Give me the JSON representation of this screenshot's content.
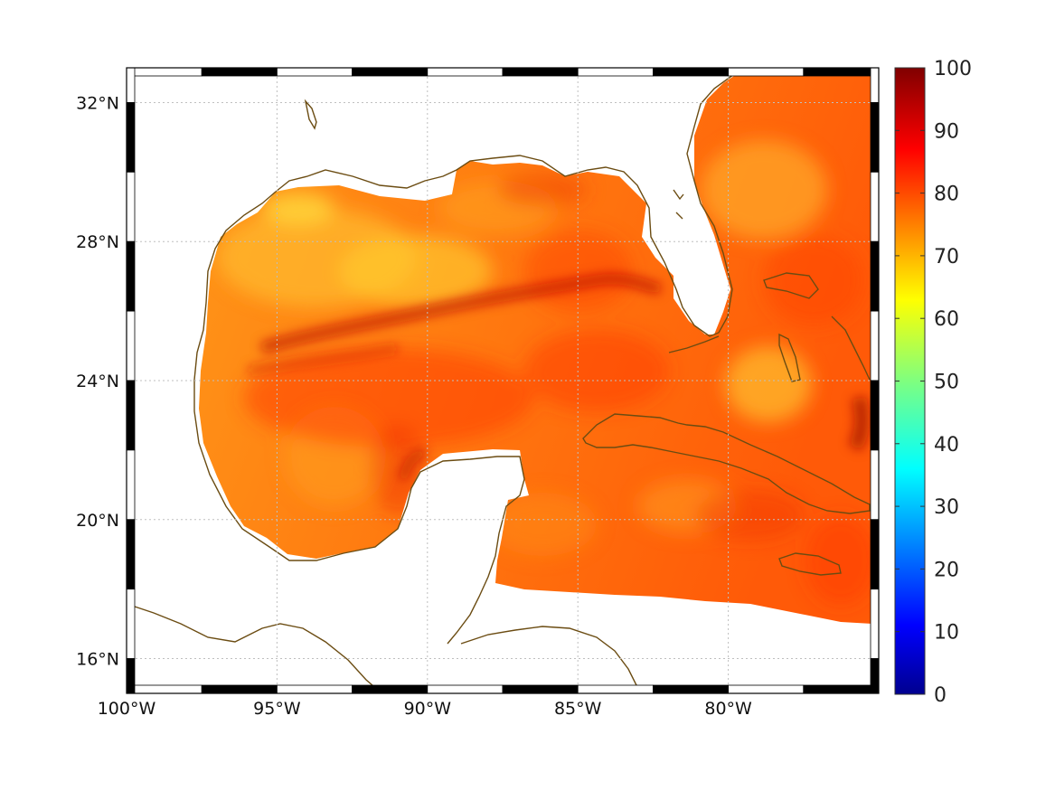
{
  "map": {
    "lon_range": [
      -100,
      -75
    ],
    "lat_range": [
      15,
      33
    ],
    "grid": "dotted",
    "lon_ticks": [
      {
        "lon": -100,
        "label": "100°W"
      },
      {
        "lon": -95,
        "label": "95°W"
      },
      {
        "lon": -90,
        "label": "90°W"
      },
      {
        "lon": -85,
        "label": "85°W"
      },
      {
        "lon": -80,
        "label": "80°W"
      }
    ],
    "lat_ticks": [
      {
        "lat": 32,
        "label": "32°N"
      },
      {
        "lat": 28,
        "label": "28°N"
      },
      {
        "lat": 24,
        "label": "24°N"
      },
      {
        "lat": 20,
        "label": "20°N"
      },
      {
        "lat": 16,
        "label": "16°N"
      }
    ],
    "coastline_color": "#6b4c12",
    "region": "Gulf of Mexico and western Caribbean"
  },
  "colorbar": {
    "colormap": "jet",
    "min": 0,
    "max": 100,
    "ticks": [
      {
        "value": 100,
        "label": "100"
      },
      {
        "value": 90,
        "label": "90"
      },
      {
        "value": 80,
        "label": "80"
      },
      {
        "value": 70,
        "label": "70"
      },
      {
        "value": 60,
        "label": "60"
      },
      {
        "value": 50,
        "label": "50"
      },
      {
        "value": 40,
        "label": "40"
      },
      {
        "value": 30,
        "label": "30"
      },
      {
        "value": 20,
        "label": "20"
      },
      {
        "value": 10,
        "label": "10"
      },
      {
        "value": 0,
        "label": "0"
      }
    ]
  }
}
